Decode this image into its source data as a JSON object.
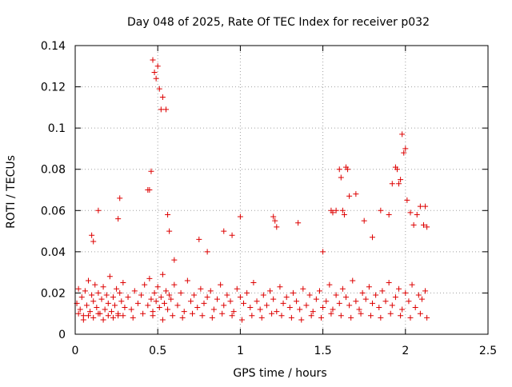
{
  "chart_data": {
    "type": "scatter",
    "title": "Day 048 of 2025, Rate Of TEC Index for receiver p032",
    "xlabel": "GPS time / hours",
    "ylabel": "ROTI / TECUs",
    "xlim": [
      0,
      2.5
    ],
    "ylim": [
      0,
      0.14
    ],
    "xticks": [
      0,
      0.5,
      1,
      1.5,
      2,
      2.5
    ],
    "xtick_labels": [
      "0",
      "0.5",
      "1",
      "1.5",
      "2",
      "2.5"
    ],
    "yticks": [
      0,
      0.02,
      0.04,
      0.06,
      0.08,
      0.1,
      0.12,
      0.14
    ],
    "ytick_labels": [
      "0",
      "0.02",
      "0.04",
      "0.06",
      "0.08",
      "0.1",
      "0.12",
      "0.14"
    ],
    "grid": true,
    "marker": "+",
    "color": "#dd0000",
    "series": [
      {
        "name": "ROTI p032",
        "x": [
          0.01,
          0.02,
          0.03,
          0.04,
          0.05,
          0.06,
          0.07,
          0.08,
          0.09,
          0.1,
          0.11,
          0.12,
          0.13,
          0.14,
          0.15,
          0.16,
          0.17,
          0.18,
          0.19,
          0.2,
          0.21,
          0.22,
          0.23,
          0.24,
          0.25,
          0.26,
          0.27,
          0.28,
          0.29,
          0.3,
          0.32,
          0.34,
          0.36,
          0.38,
          0.4,
          0.42,
          0.44,
          0.45,
          0.46,
          0.47,
          0.48,
          0.49,
          0.5,
          0.51,
          0.52,
          0.53,
          0.54,
          0.55,
          0.56,
          0.57,
          0.58,
          0.6,
          0.62,
          0.64,
          0.66,
          0.68,
          0.7,
          0.72,
          0.74,
          0.76,
          0.78,
          0.8,
          0.82,
          0.84,
          0.86,
          0.88,
          0.9,
          0.92,
          0.94,
          0.96,
          0.98,
          1.0,
          1.02,
          1.04,
          1.06,
          1.08,
          1.1,
          1.12,
          1.14,
          1.16,
          1.18,
          1.2,
          1.22,
          1.24,
          1.26,
          1.28,
          1.3,
          1.32,
          1.34,
          1.36,
          1.38,
          1.4,
          1.42,
          1.44,
          1.46,
          1.48,
          1.5,
          1.52,
          1.54,
          1.56,
          1.58,
          1.6,
          1.62,
          1.64,
          1.66,
          1.68,
          1.7,
          1.72,
          1.74,
          1.76,
          1.78,
          1.8,
          1.82,
          1.84,
          1.86,
          1.88,
          1.9,
          1.92,
          1.94,
          1.96,
          1.98,
          2.0,
          2.02,
          2.04,
          2.06,
          2.08,
          2.1,
          2.12,
          2.13,
          0.02,
          0.05,
          0.08,
          0.11,
          0.14,
          0.17,
          0.2,
          0.23,
          0.26,
          0.29,
          0.35,
          0.41,
          0.47,
          0.53,
          0.59,
          0.65,
          0.71,
          0.77,
          0.83,
          0.89,
          0.95,
          1.01,
          1.07,
          1.13,
          1.19,
          1.25,
          1.31,
          1.37,
          1.43,
          1.49,
          1.55,
          1.61,
          1.67,
          1.73,
          1.79,
          1.85,
          1.91,
          1.97,
          2.03,
          2.09,
          2.12,
          0.1,
          0.11,
          0.14,
          0.26,
          0.27,
          0.44,
          0.45,
          0.46,
          0.47,
          0.48,
          0.49,
          0.5,
          0.51,
          0.52,
          0.53,
          0.55,
          0.56,
          0.57,
          0.6,
          0.75,
          0.8,
          0.9,
          0.95,
          1.0,
          1.2,
          1.21,
          1.22,
          1.35,
          1.5,
          1.55,
          1.56,
          1.58,
          1.6,
          1.61,
          1.62,
          1.63,
          1.64,
          1.65,
          1.66,
          1.7,
          1.75,
          1.8,
          1.85,
          1.9,
          1.92,
          1.94,
          1.95,
          1.96,
          1.97,
          1.98,
          1.99,
          2.0,
          2.01,
          2.03,
          2.05,
          2.07,
          2.09,
          2.11,
          2.13
        ],
        "y": [
          0.015,
          0.022,
          0.012,
          0.018,
          0.009,
          0.021,
          0.014,
          0.026,
          0.011,
          0.019,
          0.016,
          0.024,
          0.013,
          0.02,
          0.01,
          0.017,
          0.023,
          0.012,
          0.019,
          0.015,
          0.028,
          0.011,
          0.018,
          0.014,
          0.022,
          0.009,
          0.02,
          0.016,
          0.025,
          0.013,
          0.018,
          0.012,
          0.021,
          0.015,
          0.019,
          0.024,
          0.014,
          0.027,
          0.017,
          0.011,
          0.02,
          0.016,
          0.023,
          0.013,
          0.018,
          0.029,
          0.015,
          0.021,
          0.012,
          0.019,
          0.017,
          0.024,
          0.014,
          0.02,
          0.011,
          0.026,
          0.016,
          0.019,
          0.013,
          0.022,
          0.015,
          0.018,
          0.021,
          0.012,
          0.017,
          0.024,
          0.014,
          0.019,
          0.016,
          0.011,
          0.022,
          0.018,
          0.015,
          0.02,
          0.013,
          0.025,
          0.016,
          0.012,
          0.019,
          0.014,
          0.021,
          0.017,
          0.011,
          0.023,
          0.015,
          0.018,
          0.013,
          0.02,
          0.016,
          0.012,
          0.022,
          0.014,
          0.019,
          0.011,
          0.017,
          0.021,
          0.013,
          0.016,
          0.024,
          0.012,
          0.019,
          0.015,
          0.022,
          0.018,
          0.014,
          0.026,
          0.016,
          0.012,
          0.02,
          0.017,
          0.023,
          0.015,
          0.019,
          0.013,
          0.021,
          0.016,
          0.025,
          0.014,
          0.018,
          0.022,
          0.012,
          0.02,
          0.016,
          0.024,
          0.013,
          0.019,
          0.017,
          0.021,
          0.008,
          0.01,
          0.007,
          0.009,
          0.008,
          0.01,
          0.007,
          0.009,
          0.008,
          0.01,
          0.009,
          0.008,
          0.01,
          0.009,
          0.007,
          0.009,
          0.008,
          0.01,
          0.009,
          0.008,
          0.01,
          0.009,
          0.007,
          0.009,
          0.008,
          0.01,
          0.009,
          0.008,
          0.007,
          0.009,
          0.008,
          0.01,
          0.009,
          0.008,
          0.01,
          0.009,
          0.008,
          0.01,
          0.009,
          0.008,
          0.01,
          0.062,
          0.048,
          0.045,
          0.06,
          0.056,
          0.066,
          0.07,
          0.07,
          0.079,
          0.133,
          0.127,
          0.124,
          0.13,
          0.119,
          0.109,
          0.115,
          0.109,
          0.058,
          0.05,
          0.036,
          0.046,
          0.04,
          0.05,
          0.048,
          0.057,
          0.057,
          0.055,
          0.052,
          0.054,
          0.04,
          0.06,
          0.059,
          0.06,
          0.08,
          0.076,
          0.06,
          0.058,
          0.081,
          0.08,
          0.067,
          0.068,
          0.055,
          0.047,
          0.06,
          0.058,
          0.073,
          0.081,
          0.08,
          0.073,
          0.075,
          0.097,
          0.088,
          0.09,
          0.065,
          0.059,
          0.053,
          0.058,
          0.062,
          0.053,
          0.052
        ]
      }
    ]
  }
}
